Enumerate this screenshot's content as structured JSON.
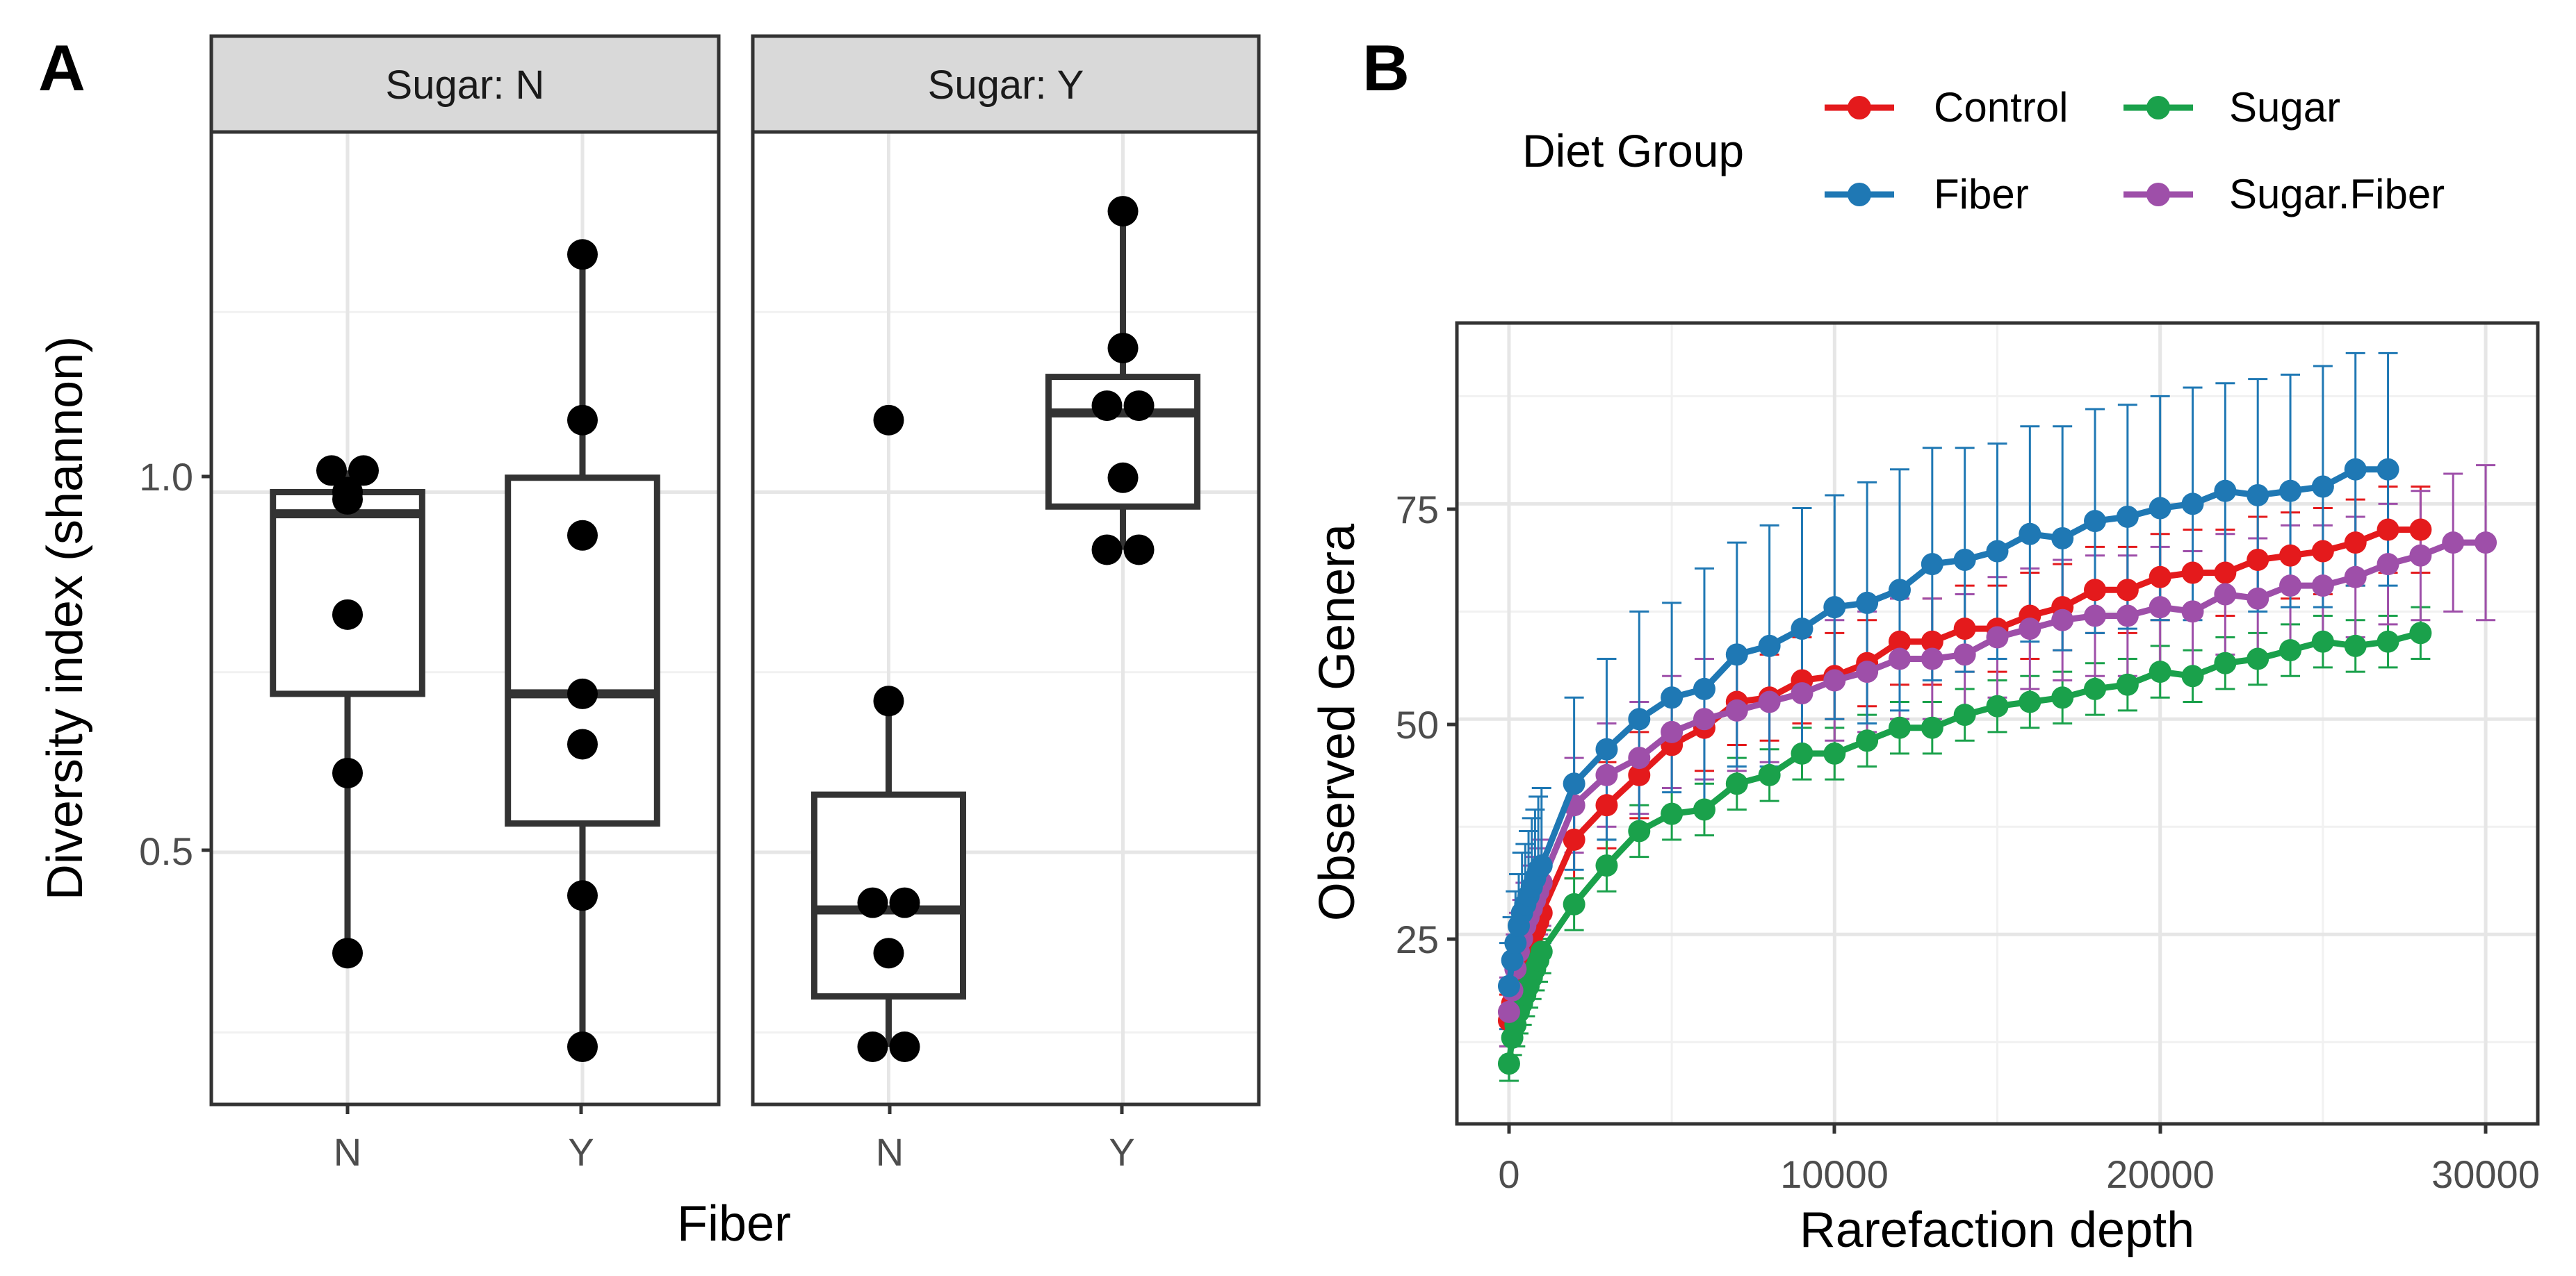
{
  "panel_a": {
    "letter": "A",
    "facets": [
      {
        "label": "Sugar: N"
      },
      {
        "label": "Sugar: Y"
      }
    ],
    "x_ticks": [
      "N",
      "Y"
    ],
    "y_ticks": [
      "0.5",
      "1.0"
    ],
    "xlabel": "Fiber",
    "ylabel": "Diversity index (shannon)"
  },
  "panel_b": {
    "letter": "B",
    "legend_title": "Diet Group",
    "legend": [
      {
        "name": "Control",
        "color": "#e41a1c"
      },
      {
        "name": "Sugar",
        "color": "#1aa14b"
      },
      {
        "name": "Fiber",
        "color": "#1f78b4"
      },
      {
        "name": "Sugar.Fiber",
        "color": "#9e4fa9"
      }
    ],
    "x_ticks": [
      "0",
      "10000",
      "20000",
      "30000"
    ],
    "y_ticks": [
      "25",
      "50",
      "75"
    ],
    "xlabel": "Rarefaction depth",
    "ylabel": "Observed Genera"
  },
  "chart_data": [
    {
      "type": "box",
      "title": "",
      "xlabel": "Fiber",
      "ylabel": "Diversity index (shannon)",
      "ylim": [
        0.15,
        1.5
      ],
      "facets": [
        {
          "label": "Sugar: N",
          "groups": [
            {
              "x": "N",
              "q1": 0.72,
              "median": 0.97,
              "q3": 1.0,
              "whisker_low": 0.36,
              "whisker_high": 1.03,
              "points": [
                1.03,
                1.03,
                1.0,
                0.99,
                0.83,
                0.61,
                0.36
              ]
            },
            {
              "x": "Y",
              "q1": 0.54,
              "median": 0.72,
              "q3": 1.02,
              "whisker_low": 0.23,
              "whisker_high": 1.33,
              "points": [
                1.33,
                1.1,
                0.94,
                0.72,
                0.65,
                0.44,
                0.23
              ]
            }
          ]
        },
        {
          "label": "Sugar: Y",
          "groups": [
            {
              "x": "N",
              "q1": 0.3,
              "median": 0.42,
              "q3": 0.58,
              "whisker_low": 0.23,
              "whisker_high": 0.71,
              "points": [
                1.1,
                0.71,
                0.43,
                0.43,
                0.36,
                0.23,
                0.23
              ]
            },
            {
              "x": "Y",
              "q1": 0.98,
              "median": 1.11,
              "q3": 1.16,
              "whisker_low": 0.92,
              "whisker_high": 1.39,
              "points": [
                1.39,
                1.2,
                1.12,
                1.12,
                1.02,
                0.92,
                0.92
              ]
            }
          ]
        }
      ]
    },
    {
      "type": "line",
      "title": "",
      "xlabel": "Rarefaction depth",
      "ylabel": "Observed Genera",
      "xlim": [
        -1600,
        31600
      ],
      "ylim": [
        3,
        96
      ],
      "legend_title": "Diet Group",
      "series": [
        {
          "name": "Control",
          "color": "#e41a1c",
          "x": [
            0,
            100,
            200,
            300,
            400,
            500,
            600,
            700,
            800,
            900,
            1000,
            2000,
            3000,
            4000,
            5000,
            6000,
            7000,
            8000,
            9000,
            10000,
            11000,
            12000,
            13000,
            14000,
            15000,
            16000,
            17000,
            18000,
            19000,
            20000,
            21000,
            22000,
            23000,
            24000,
            25000,
            26000,
            27000,
            28000
          ],
          "y": [
            15,
            17,
            19,
            20.5,
            21.5,
            22.5,
            23.5,
            24.5,
            25.5,
            26.5,
            27.5,
            36,
            40,
            43.5,
            47,
            49,
            52,
            52.5,
            54.5,
            55,
            56.5,
            59,
            59,
            60.5,
            60.5,
            62,
            63,
            65,
            65,
            66.5,
            67,
            67,
            68.5,
            69,
            69.5,
            70.5,
            72,
            72
          ],
          "err": [
            3,
            3,
            3.5,
            3.5,
            4,
            4,
            4,
            4,
            4,
            4,
            4,
            4.5,
            5,
            5,
            5,
            5,
            5,
            5,
            5,
            5,
            5,
            5,
            5,
            5,
            5,
            5,
            5,
            5,
            5,
            5,
            5,
            5,
            5,
            5,
            5,
            5,
            5,
            5
          ]
        },
        {
          "name": "Sugar",
          "color": "#1aa14b",
          "x": [
            0,
            100,
            200,
            300,
            400,
            500,
            600,
            700,
            800,
            900,
            1000,
            2000,
            3000,
            4000,
            5000,
            6000,
            7000,
            8000,
            9000,
            10000,
            11000,
            12000,
            13000,
            14000,
            15000,
            16000,
            17000,
            18000,
            19000,
            20000,
            21000,
            22000,
            23000,
            24000,
            25000,
            26000,
            27000,
            28000
          ],
          "y": [
            10,
            13,
            14.5,
            16,
            17,
            18,
            19,
            20,
            21,
            22,
            23,
            28.5,
            33,
            37,
            39,
            39.5,
            42.5,
            43.5,
            46,
            46,
            47.5,
            49,
            49,
            50.5,
            51.5,
            52,
            52.5,
            53.5,
            54,
            55.5,
            55,
            56.5,
            57,
            58,
            59,
            58.5,
            59,
            60
          ],
          "err": [
            2,
            2,
            2.5,
            2.5,
            2.5,
            2.5,
            2.5,
            2.5,
            2.5,
            2.5,
            2.5,
            3,
            3,
            3,
            3,
            3,
            3,
            3,
            3,
            3,
            3,
            3,
            3,
            3,
            3,
            3,
            3,
            3,
            3,
            3,
            3,
            3,
            3,
            3,
            3,
            3,
            3,
            3
          ]
        },
        {
          "name": "Fiber",
          "color": "#1f78b4",
          "x": [
            0,
            100,
            200,
            300,
            400,
            500,
            600,
            700,
            800,
            900,
            1000,
            2000,
            3000,
            4000,
            5000,
            6000,
            7000,
            8000,
            9000,
            10000,
            11000,
            12000,
            13000,
            14000,
            15000,
            16000,
            17000,
            18000,
            19000,
            20000,
            21000,
            22000,
            23000,
            24000,
            25000,
            26000,
            27000
          ],
          "y": [
            19,
            22,
            24,
            26,
            27.5,
            28.5,
            29.5,
            30.5,
            31.5,
            32.5,
            33,
            42.5,
            46.5,
            50,
            52.5,
            53.5,
            57.5,
            58.5,
            60.5,
            63,
            63.5,
            65,
            68,
            68.5,
            69.5,
            71.5,
            71,
            73,
            73.5,
            74.5,
            75,
            76.5,
            76,
            76.5,
            77,
            79,
            79
          ],
          "err": [
            5,
            5,
            6,
            6,
            7,
            7,
            7.5,
            8,
            8,
            8.5,
            9,
            10,
            10.5,
            12.5,
            11,
            14,
            13,
            14,
            14,
            13,
            14,
            14,
            13.5,
            13,
            12.5,
            12.5,
            13,
            13,
            13,
            13,
            13.5,
            12.5,
            13.5,
            13.5,
            14,
            13.5,
            13.5
          ]
        },
        {
          "name": "Sugar.Fiber",
          "color": "#9e4fa9",
          "x": [
            0,
            100,
            200,
            300,
            400,
            500,
            600,
            700,
            800,
            900,
            1000,
            2000,
            3000,
            4000,
            5000,
            6000,
            7000,
            8000,
            9000,
            10000,
            11000,
            12000,
            13000,
            14000,
            15000,
            16000,
            17000,
            18000,
            19000,
            20000,
            21000,
            22000,
            23000,
            24000,
            25000,
            26000,
            27000,
            28000,
            29000,
            30000
          ],
          "y": [
            16,
            18.5,
            21,
            23,
            24.5,
            26,
            27,
            28,
            29,
            30,
            31,
            40,
            43.5,
            45.5,
            48.5,
            50,
            51,
            52,
            53,
            54.5,
            55.5,
            57,
            57,
            57.5,
            59.5,
            60.5,
            61.5,
            62,
            62,
            63,
            62.5,
            64.5,
            64,
            65.5,
            65.5,
            66.5,
            68,
            69,
            70.5,
            70.5
          ],
          "err": [
            4,
            4,
            4,
            4.5,
            4.5,
            5,
            5,
            5,
            5,
            5,
            5,
            5.5,
            6,
            6.5,
            6.5,
            7,
            7,
            7,
            7,
            7,
            7,
            7,
            7,
            7,
            7,
            7,
            7,
            7,
            7,
            7,
            7,
            7,
            7,
            7,
            7,
            7,
            7,
            7.5,
            8,
            9
          ]
        }
      ]
    }
  ]
}
